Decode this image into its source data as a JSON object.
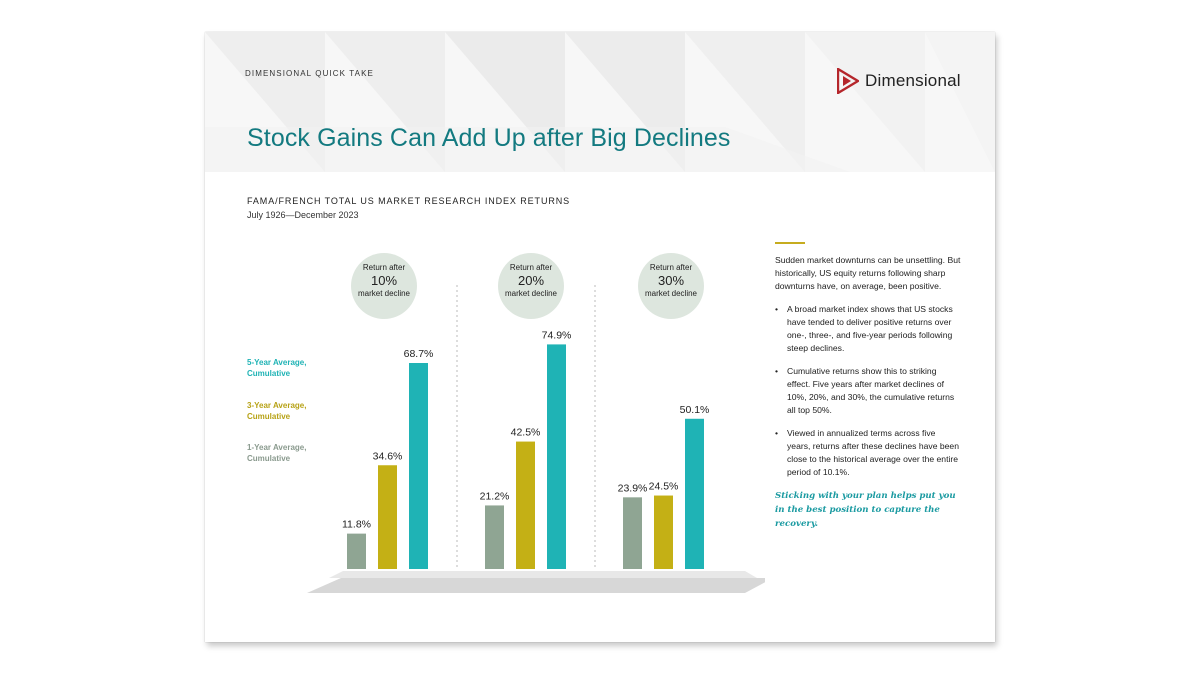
{
  "header": {
    "tag": "DIMENSIONAL QUICK TAKE",
    "brand": "Dimensional",
    "title": "Stock Gains Can Add Up after Big Declines"
  },
  "colors": {
    "teal": "#1fb3b5",
    "gold": "#c4b015",
    "gray": "#8fa593",
    "title_teal": "#137a80",
    "brand_red": "#b5262b"
  },
  "chart_data": {
    "type": "bar",
    "title": "FAMA/FRENCH TOTAL US MARKET RESEARCH INDEX RETURNS",
    "subtitle": "July 1926—December 2023",
    "groups": [
      {
        "label_top": "Return after",
        "label_value": "10%",
        "label_bottom": "market decline"
      },
      {
        "label_top": "Return after",
        "label_value": "20%",
        "label_bottom": "market decline"
      },
      {
        "label_top": "Return after",
        "label_value": "30%",
        "label_bottom": "market decline"
      }
    ],
    "series": [
      {
        "name": "1-Year Average, Cumulative",
        "color": "#8fa593",
        "values": [
          11.8,
          21.2,
          23.9
        ],
        "labels": [
          "11.8%",
          "21.2%",
          "23.9%"
        ]
      },
      {
        "name": "3-Year Average, Cumulative",
        "color": "#c4b015",
        "values": [
          34.6,
          42.5,
          24.5
        ],
        "labels": [
          "34.6%",
          "42.5%",
          "24.5%"
        ]
      },
      {
        "name": "5-Year Average, Cumulative",
        "color": "#1fb3b5",
        "values": [
          68.7,
          74.9,
          50.1
        ],
        "labels": [
          "68.7%",
          "74.9%",
          "50.1%"
        ]
      }
    ],
    "legend": [
      {
        "line1": "5-Year Average,",
        "line2": "Cumulative",
        "color": "#1fb3b5"
      },
      {
        "line1": "3-Year Average,",
        "line2": "Cumulative",
        "color": "#c4b015"
      },
      {
        "line1": "1-Year Average,",
        "line2": "Cumulative",
        "color": "#8fa593"
      }
    ],
    "ylim": [
      0,
      80
    ],
    "grid": false,
    "legend_placement": "left"
  },
  "sidebar": {
    "intro": "Sudden market downturns can be unsettling. But historically, US equity returns following sharp downturns have, on average, been positive.",
    "bullet_char": "•",
    "bullets": [
      "A broad market index shows that US stocks have tended to deliver positive returns over one-, three-, and five-year periods following steep declines.",
      "Cumulative returns show this to striking effect. Five years after market declines of 10%, 20%, and 30%, the cumulative returns all top 50%.",
      "Viewed in annualized terms across five years, returns after these declines have been close to the historical average over the entire period of 10.1%."
    ],
    "callout": "Sticking with your plan helps put you in the best position to capture the recovery."
  }
}
